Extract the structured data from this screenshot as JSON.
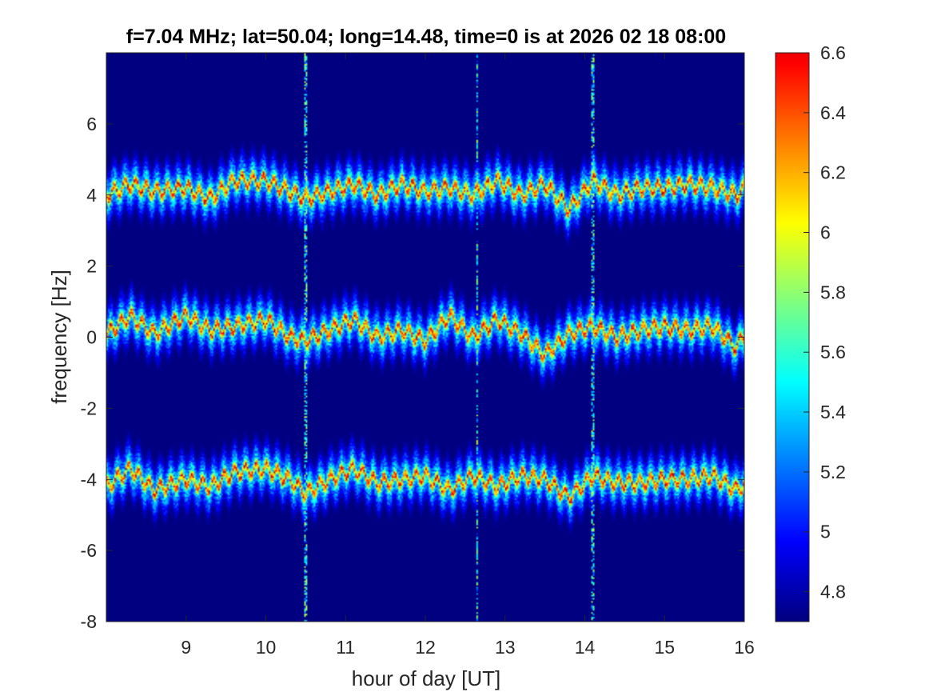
{
  "chart_data": {
    "type": "heatmap",
    "title": "f=7.04 MHz;  lat=50.04; long=14.48, time=0 is at 2026 02 18 08:00",
    "xlabel": "hour of day [UT]",
    "ylabel": "frequency [Hz]",
    "xlim": [
      8.0,
      16.0
    ],
    "ylim": [
      -8,
      8
    ],
    "xticks": [
      9,
      10,
      11,
      12,
      13,
      14,
      15,
      16
    ],
    "yticks": [
      -8,
      -6,
      -4,
      -2,
      0,
      2,
      4,
      6
    ],
    "colorbar": {
      "clim": [
        4.7,
        6.6
      ],
      "ticks": [
        4.8,
        5.0,
        5.2,
        5.4,
        5.6,
        5.8,
        6.0,
        6.2,
        6.4,
        6.6
      ],
      "colormap": "jet"
    },
    "background_level": 4.7,
    "series": [
      {
        "center_hz": 4.2,
        "x": [
          8.0,
          8.3,
          8.6,
          9.0,
          9.3,
          9.6,
          10.0,
          10.3,
          10.5,
          10.8,
          11.1,
          11.4,
          11.7,
          12.0,
          12.3,
          12.6,
          12.9,
          13.2,
          13.5,
          13.8,
          14.1,
          14.4,
          14.7,
          15.0,
          15.3,
          15.6,
          15.9,
          16.0
        ],
        "y": [
          4.0,
          4.3,
          4.1,
          4.2,
          3.9,
          4.4,
          4.4,
          4.1,
          3.9,
          4.1,
          4.3,
          4.0,
          4.3,
          4.1,
          4.2,
          4.0,
          4.4,
          4.0,
          4.3,
          3.6,
          4.4,
          4.0,
          4.2,
          4.2,
          4.3,
          4.2,
          4.0,
          4.2
        ]
      },
      {
        "center_hz": 0.2,
        "x": [
          8.0,
          8.3,
          8.6,
          9.0,
          9.3,
          9.6,
          10.0,
          10.3,
          10.5,
          10.8,
          11.1,
          11.4,
          11.7,
          12.0,
          12.3,
          12.6,
          12.9,
          13.2,
          13.5,
          13.8,
          14.1,
          14.4,
          14.7,
          15.0,
          15.3,
          15.6,
          15.9,
          16.0
        ],
        "y": [
          0.1,
          0.6,
          0.1,
          0.6,
          0.2,
          0.3,
          0.5,
          0.0,
          -0.1,
          0.2,
          0.5,
          0.0,
          0.2,
          -0.1,
          0.6,
          0.0,
          0.5,
          0.1,
          -0.5,
          0.1,
          0.3,
          0.0,
          0.2,
          0.3,
          0.2,
          0.3,
          -0.3,
          0.1
        ]
      },
      {
        "center_hz": -4.0,
        "x": [
          8.0,
          8.3,
          8.6,
          9.0,
          9.3,
          9.6,
          10.0,
          10.3,
          10.5,
          10.8,
          11.1,
          11.4,
          11.7,
          12.0,
          12.3,
          12.6,
          12.9,
          13.2,
          13.5,
          13.8,
          14.1,
          14.4,
          14.7,
          15.0,
          15.3,
          15.6,
          15.9,
          16.0
        ],
        "y": [
          -4.2,
          -3.7,
          -4.3,
          -4.0,
          -4.2,
          -3.8,
          -3.7,
          -4.0,
          -4.4,
          -4.0,
          -3.7,
          -4.1,
          -4.0,
          -3.9,
          -4.3,
          -3.9,
          -4.2,
          -3.9,
          -4.0,
          -4.5,
          -3.9,
          -4.1,
          -4.1,
          -4.0,
          -4.0,
          -3.9,
          -4.3,
          -4.1
        ]
      }
    ],
    "vertical_artifacts_hours": [
      10.5,
      12.65,
      14.1
    ]
  }
}
